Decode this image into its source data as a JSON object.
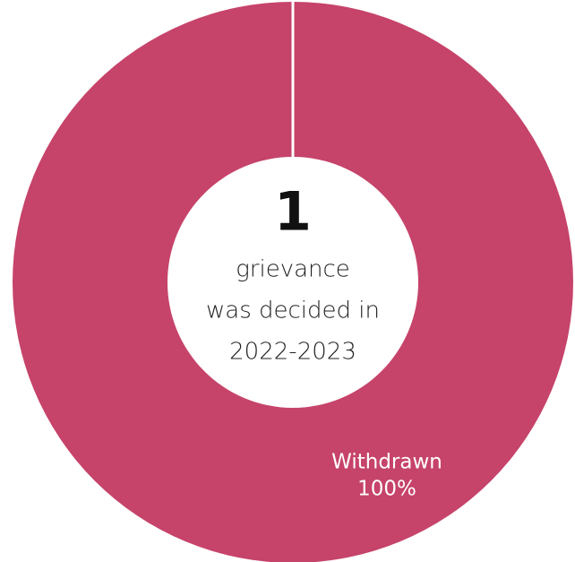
{
  "chart_data": {
    "type": "donut",
    "categories": [
      "Withdrawn"
    ],
    "values": [
      100
    ],
    "value_labels": [
      "100%"
    ],
    "colors": [
      "#c6436a"
    ],
    "center_total": "1",
    "center_lines": [
      "grievance",
      "was decided in",
      "2022-2023"
    ]
  }
}
